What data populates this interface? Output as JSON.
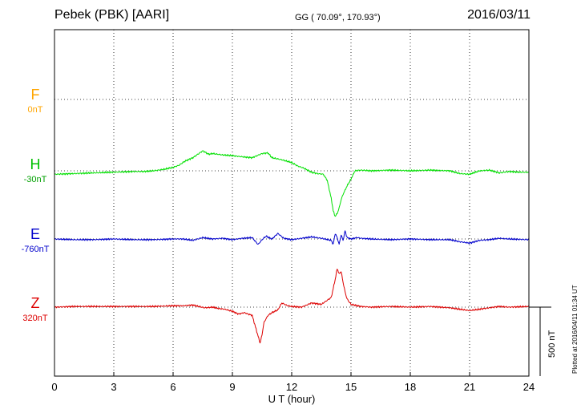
{
  "header": {
    "station": "Pebek (PBK)  [AARI]",
    "coords": "GG ( 70.09°, 170.93°)",
    "date": "2016/03/11"
  },
  "footer": {
    "plotted": "Plotted at 2016/04/11 01:34 UT"
  },
  "scale": {
    "label": "500 nT"
  },
  "colors": {
    "F": "#ffa500",
    "H": "#00e000",
    "E": "#0000cc",
    "Z": "#dd0000"
  },
  "chart_data": {
    "type": "line",
    "xlabel": "U T (hour)",
    "xlim": [
      0,
      24
    ],
    "xticks": [
      0,
      3,
      6,
      9,
      12,
      15,
      18,
      21,
      24
    ],
    "components": [
      {
        "name": "F",
        "baseline_label": "0nT",
        "color": "#ffa500"
      },
      {
        "name": "H",
        "baseline_label": "-30nT",
        "color": "#00e000"
      },
      {
        "name": "E",
        "baseline_label": "-760nT",
        "color": "#0000cc"
      },
      {
        "name": "Z",
        "baseline_label": "320nT",
        "color": "#dd0000"
      }
    ],
    "series": [
      {
        "name": "H",
        "x": [
          0,
          1,
          2,
          3,
          4,
          4.5,
          5,
          5.5,
          6,
          6.3,
          6.6,
          7,
          7.2,
          7.5,
          7.8,
          8,
          8.5,
          9,
          9.3,
          9.6,
          10,
          10.5,
          10.8,
          11,
          11.5,
          12,
          12.3,
          12.6,
          13,
          13.3,
          13.6,
          13.8,
          14,
          14.1,
          14.2,
          14.3,
          14.4,
          14.5,
          14.6,
          14.8,
          15,
          15.2,
          15.5,
          16,
          17,
          18,
          19,
          20,
          20.5,
          21,
          21.5,
          22,
          22.5,
          23,
          23.5,
          24
        ],
        "y": [
          -25,
          -20,
          -15,
          -10,
          -5,
          -5,
          0,
          10,
          25,
          40,
          70,
          95,
          115,
          145,
          120,
          125,
          115,
          110,
          105,
          100,
          95,
          125,
          130,
          95,
          80,
          60,
          35,
          20,
          -10,
          -20,
          -25,
          -70,
          -200,
          -290,
          -330,
          -310,
          -270,
          -210,
          -170,
          -110,
          -60,
          0,
          5,
          0,
          5,
          0,
          5,
          0,
          -20,
          -25,
          0,
          5,
          -15,
          -5,
          -10,
          -10
        ]
      },
      {
        "name": "E",
        "x": [
          0,
          1,
          2,
          3,
          4,
          5,
          6,
          6.5,
          7,
          7.5,
          8,
          8.5,
          9,
          9.5,
          10,
          10.3,
          10.5,
          10.7,
          11,
          11.3,
          11.6,
          12,
          12.5,
          13,
          13.5,
          14,
          14.1,
          14.2,
          14.3,
          14.4,
          14.5,
          14.6,
          14.7,
          14.8,
          15,
          15.3,
          15.5,
          16,
          17,
          18,
          19,
          20,
          20.5,
          21,
          21.5,
          22,
          22.5,
          23,
          24
        ],
        "y": [
          0,
          -5,
          -5,
          0,
          -5,
          -5,
          0,
          0,
          -10,
          10,
          0,
          5,
          -5,
          5,
          10,
          -40,
          -5,
          20,
          0,
          40,
          5,
          -5,
          5,
          15,
          5,
          -10,
          -40,
          40,
          10,
          -40,
          30,
          -10,
          60,
          10,
          0,
          10,
          5,
          0,
          -5,
          0,
          -5,
          -5,
          -20,
          -30,
          -10,
          -5,
          5,
          0,
          -5
        ]
      },
      {
        "name": "Z",
        "x": [
          0,
          1,
          2,
          3,
          4,
          5,
          6,
          6.5,
          7,
          7.3,
          7.6,
          8,
          8.3,
          8.6,
          9,
          9.3,
          9.6,
          10,
          10.2,
          10.4,
          10.5,
          10.6,
          10.8,
          11,
          11.3,
          11.5,
          11.8,
          12,
          12.5,
          13,
          13.5,
          14,
          14.2,
          14.3,
          14.4,
          14.5,
          14.6,
          14.7,
          14.8,
          15,
          15.5,
          16,
          17,
          18,
          19,
          20,
          20.5,
          21,
          21.5,
          22,
          22.5,
          23,
          24
        ],
        "y": [
          0,
          5,
          5,
          5,
          5,
          5,
          10,
          10,
          15,
          5,
          -5,
          0,
          -10,
          -15,
          -30,
          -50,
          -40,
          -60,
          -160,
          -260,
          -200,
          -110,
          -60,
          -40,
          -20,
          30,
          10,
          5,
          0,
          30,
          20,
          70,
          200,
          280,
          240,
          260,
          180,
          110,
          60,
          20,
          5,
          0,
          5,
          0,
          5,
          -5,
          -15,
          -25,
          -15,
          -5,
          5,
          0,
          5
        ]
      }
    ]
  }
}
